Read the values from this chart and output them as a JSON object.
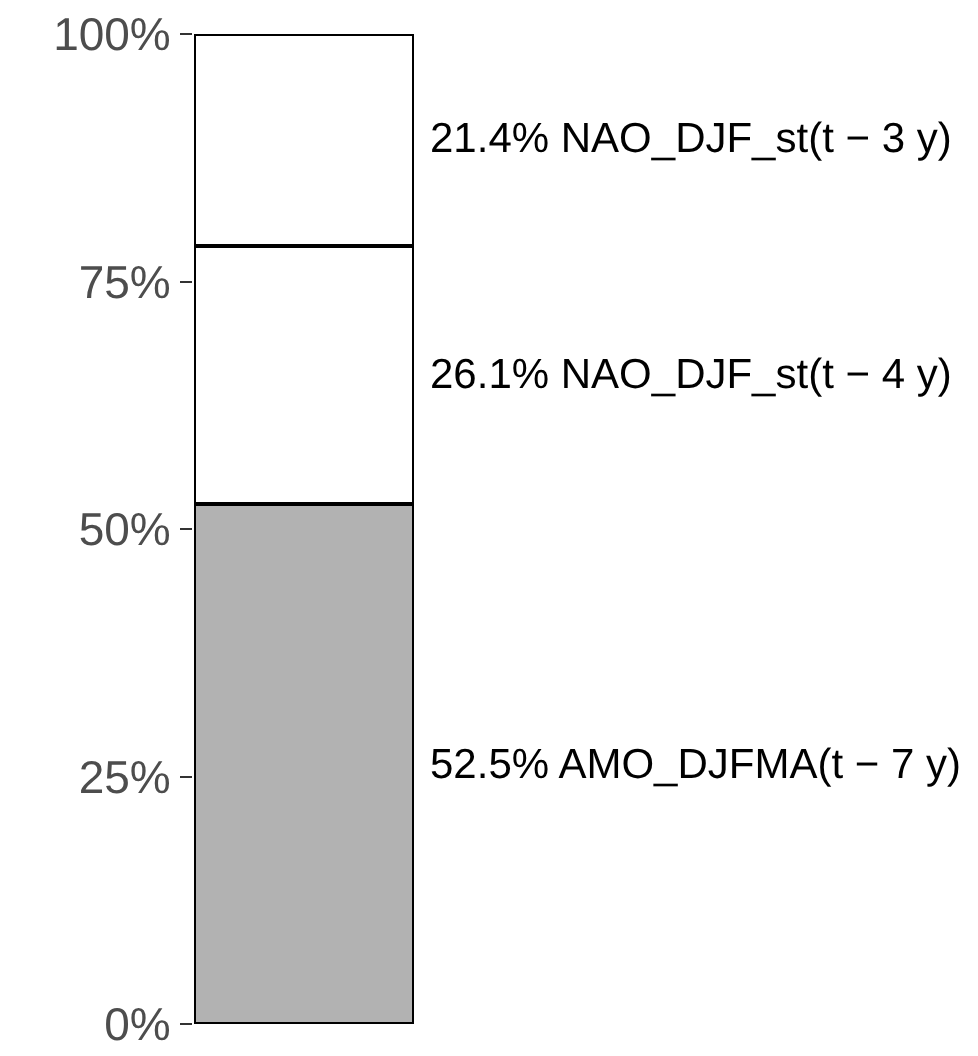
{
  "chart_data": {
    "type": "bar",
    "stacked": true,
    "categories": [
      null
    ],
    "series": [
      {
        "name": "AMO_DJFMA(t − 7 y)",
        "color": "#b2b2b2",
        "values": [
          52.5
        ],
        "value_labels": [
          "52.5%"
        ]
      },
      {
        "name": "NAO_DJF_st(t − 4 y)",
        "color": "#ffffff",
        "values": [
          26.1
        ],
        "value_labels": [
          "26.1%"
        ]
      },
      {
        "name": "NAO_DJF_st(t − 3 y)",
        "color": "#ffffff",
        "values": [
          21.4
        ],
        "value_labels": [
          "21.4%"
        ]
      }
    ],
    "ylim": [
      0,
      100
    ],
    "yticks": [
      {
        "value": 0,
        "label": "0%"
      },
      {
        "value": 25,
        "label": "25%"
      },
      {
        "value": 50,
        "label": "50%"
      },
      {
        "value": 75,
        "label": "75%"
      },
      {
        "value": 100,
        "label": "100%"
      }
    ],
    "tick_labels": "y",
    "legend": false
  }
}
